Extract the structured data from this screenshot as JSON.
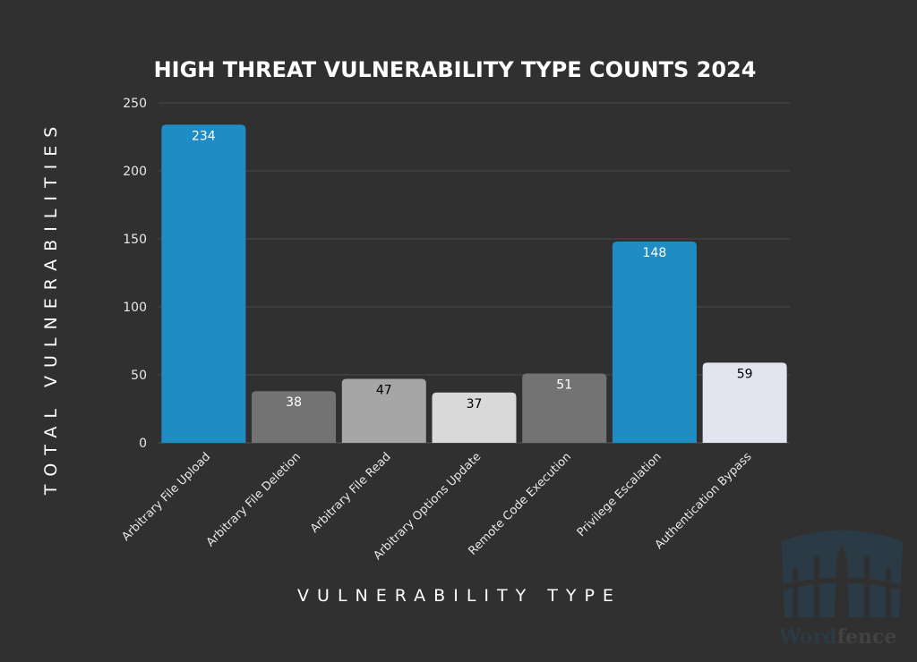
{
  "chart_data": {
    "type": "bar",
    "title": "HIGH THREAT VULNERABILITY TYPE COUNTS 2024",
    "xlabel": "VULNERABILITY TYPE",
    "ylabel": "TOTAL VULNERABILITIES",
    "categories": [
      "Arbitrary File Upload",
      "Arbitrary File Deletion",
      "Arbitrary File Read",
      "Arbitrary Options Update",
      "Remote Code Execution",
      "Privilege Escalation",
      "Authentication Bypass"
    ],
    "values": [
      234,
      38,
      47,
      37,
      51,
      148,
      59
    ],
    "colors": [
      "#1f8dc4",
      "#737373",
      "#a6a6a6",
      "#d9d9d9",
      "#737373",
      "#1f8dc4",
      "#e2e4ef"
    ],
    "label_colors": [
      "#ffffff",
      "#ffffff",
      "#000000",
      "#000000",
      "#ffffff",
      "#ffffff",
      "#000000"
    ],
    "ylim": [
      0,
      250
    ],
    "yticks": [
      0,
      50,
      100,
      150,
      200,
      250
    ],
    "grid": true,
    "legend": "none"
  },
  "watermark": {
    "logo": "Wordfence"
  },
  "colors": {
    "background": "#303030",
    "grid": "#4a4a4a",
    "text": "#ffffff"
  }
}
